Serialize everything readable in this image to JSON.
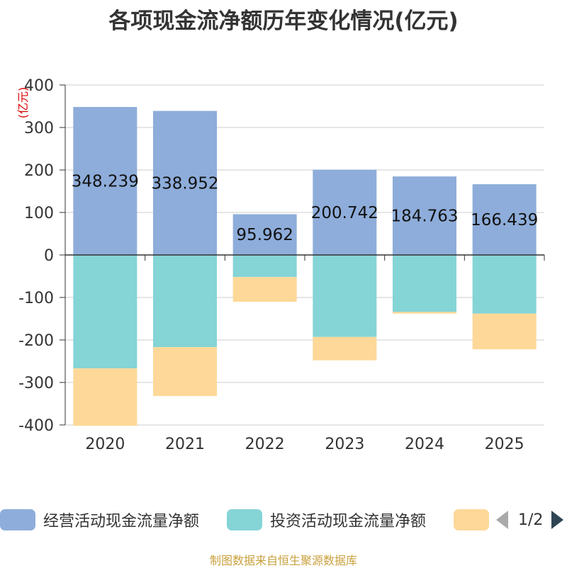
{
  "title": "各项现金流净额历年变化情况(亿元)",
  "footer": "制图数据来自恒生聚源数据库",
  "pager": {
    "text": "1/2"
  },
  "legend": [
    {
      "name": "经营活动现金流量净额",
      "color": "#8eadda"
    },
    {
      "name": "投资活动现金流量净额",
      "color": "#85d4d6"
    },
    {
      "name": "",
      "color": "#fdd898"
    }
  ],
  "chart_data": {
    "type": "bar",
    "stacked": true,
    "title": "各项现金流净额历年变化情况(亿元)",
    "ylabel": "(亿元)",
    "xlabel": "",
    "ylim": [
      -400,
      400
    ],
    "yticks": [
      400,
      300,
      200,
      100,
      0,
      -100,
      -200,
      -300,
      -400
    ],
    "categories": [
      "2020",
      "2021",
      "2022",
      "2023",
      "2024",
      "2025"
    ],
    "series": [
      {
        "name": "经营活动现金流量净额",
        "color": "#8eadda",
        "values": [
          348.239,
          338.952,
          95.962,
          200.742,
          184.763,
          166.439
        ],
        "labels": [
          "348.239",
          "338.952",
          "95.962",
          "200.742",
          "184.763",
          "166.439"
        ]
      },
      {
        "name": "投资活动现金流量净额",
        "color": "#85d4d6",
        "values": [
          -267,
          -217,
          -52,
          -193,
          -134,
          -138
        ]
      },
      {
        "name": "",
        "color": "#fdd898",
        "values": [
          -135,
          -115,
          -58,
          -55,
          -4,
          -84
        ]
      }
    ]
  }
}
